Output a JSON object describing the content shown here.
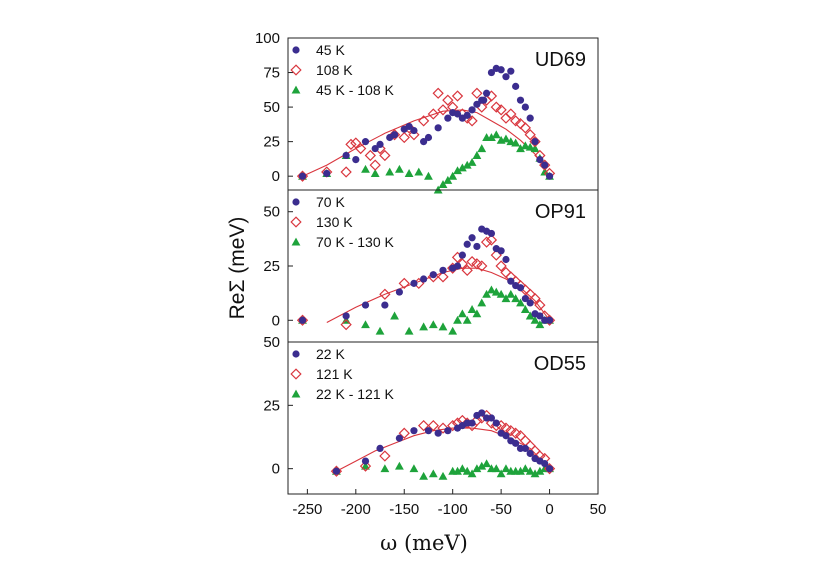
{
  "chart_data": [
    {
      "type": "scatter",
      "panel_label": "UD69",
      "ylim": [
        -10,
        100
      ],
      "yticks": [
        0,
        25,
        50,
        75,
        100
      ],
      "series": [
        {
          "name": "45 K",
          "marker": "circle",
          "color": "#3b2d8f",
          "x": [
            -255,
            -230,
            -210,
            -200,
            -190,
            -180,
            -175,
            -165,
            -160,
            -150,
            -145,
            -140,
            -130,
            -125,
            -115,
            -105,
            -100,
            -95,
            -90,
            -85,
            -80,
            -75,
            -70,
            -68,
            -65,
            -60,
            -55,
            -50,
            -45,
            -40,
            -35,
            -30,
            -25,
            -20,
            -15,
            -10,
            -5,
            0
          ],
          "y": [
            0,
            2,
            15,
            12,
            25,
            20,
            23,
            28,
            30,
            34,
            36,
            33,
            25,
            28,
            35,
            42,
            46,
            45,
            42,
            44,
            48,
            52,
            55,
            55,
            60,
            75,
            78,
            77,
            72,
            76,
            65,
            55,
            50,
            42,
            25,
            12,
            8,
            0
          ]
        },
        {
          "name": "108 K",
          "marker": "diamond",
          "color": "#d9363e",
          "x": [
            -255,
            -230,
            -210,
            -205,
            -200,
            -195,
            -185,
            -180,
            -175,
            -170,
            -160,
            -150,
            -145,
            -140,
            -130,
            -120,
            -115,
            -110,
            -105,
            -100,
            -95,
            -90,
            -85,
            -80,
            -75,
            -70,
            -65,
            -60,
            -55,
            -50,
            -45,
            -40,
            -35,
            -30,
            -25,
            -20,
            -15,
            -10,
            -5,
            0
          ],
          "y": [
            0,
            3,
            3,
            23,
            24,
            20,
            15,
            8,
            20,
            15,
            30,
            28,
            35,
            30,
            40,
            45,
            60,
            48,
            55,
            50,
            58,
            45,
            42,
            40,
            60,
            50,
            55,
            58,
            50,
            48,
            42,
            45,
            40,
            38,
            35,
            30,
            25,
            15,
            8,
            2
          ]
        },
        {
          "name": "45 K - 108 K",
          "marker": "triangle",
          "color": "#1ea33b",
          "x": [
            -255,
            -230,
            -210,
            -190,
            -180,
            -165,
            -155,
            -145,
            -135,
            -125,
            -115,
            -110,
            -105,
            -100,
            -95,
            -90,
            -85,
            -80,
            -75,
            -70,
            -65,
            -60,
            -55,
            -50,
            -45,
            -40,
            -35,
            -30,
            -25,
            -20,
            -15,
            -10,
            -5,
            0
          ],
          "y": [
            0,
            2,
            15,
            5,
            2,
            3,
            5,
            2,
            3,
            0,
            -10,
            -6,
            -3,
            0,
            4,
            6,
            8,
            10,
            15,
            20,
            28,
            28,
            30,
            26,
            27,
            25,
            24,
            20,
            22,
            21,
            20,
            13,
            3,
            0
          ]
        }
      ],
      "fit_curve": {
        "x": [
          -255,
          -230,
          -200,
          -170,
          -140,
          -110,
          -90,
          -75,
          -60,
          -45,
          -30,
          -15,
          0
        ],
        "y": [
          0,
          8,
          20,
          31,
          40,
          47,
          48,
          46,
          40,
          34,
          26,
          16,
          0
        ]
      }
    },
    {
      "type": "scatter",
      "panel_label": "OP91",
      "ylim": [
        -10,
        60
      ],
      "yticks": [
        0,
        25,
        50
      ],
      "series": [
        {
          "name": "70 K",
          "marker": "circle",
          "color": "#3b2d8f",
          "x": [
            -255,
            -210,
            -190,
            -170,
            -155,
            -140,
            -130,
            -120,
            -110,
            -100,
            -95,
            -90,
            -85,
            -80,
            -75,
            -70,
            -65,
            -60,
            -55,
            -50,
            -45,
            -40,
            -35,
            -30,
            -25,
            -20,
            -15,
            -10,
            -5,
            0
          ],
          "y": [
            0,
            2,
            7,
            7,
            13,
            17,
            19,
            21,
            23,
            24,
            25,
            30,
            35,
            38,
            34,
            42,
            41,
            40,
            33,
            32,
            28,
            18,
            16,
            15,
            10,
            8,
            3,
            2,
            0,
            0
          ]
        },
        {
          "name": "130 K",
          "marker": "diamond",
          "color": "#d9363e",
          "x": [
            -255,
            -210,
            -170,
            -150,
            -135,
            -120,
            -110,
            -100,
            -95,
            -90,
            -85,
            -80,
            -75,
            -70,
            -65,
            -60,
            -55,
            -50,
            -45,
            -40,
            -35,
            -30,
            -25,
            -20,
            -15,
            -10,
            -5,
            0
          ],
          "y": [
            0,
            -2,
            12,
            17,
            17,
            20,
            20,
            24,
            29,
            26,
            23,
            27,
            26,
            25,
            36,
            37,
            30,
            25,
            22,
            20,
            18,
            16,
            14,
            12,
            10,
            7,
            2,
            0
          ]
        },
        {
          "name": "70 K - 130 K",
          "marker": "triangle",
          "color": "#1ea33b",
          "x": [
            -255,
            -210,
            -190,
            -175,
            -160,
            -145,
            -130,
            -120,
            -110,
            -100,
            -95,
            -90,
            -85,
            -80,
            -75,
            -70,
            -65,
            -60,
            -55,
            -50,
            -45,
            -40,
            -35,
            -30,
            -25,
            -20,
            -15,
            -10,
            -5,
            0
          ],
          "y": [
            0,
            0,
            -2,
            -5,
            2,
            -5,
            -3,
            -2,
            -3,
            -5,
            0,
            3,
            0,
            5,
            3,
            8,
            12,
            14,
            13,
            12,
            10,
            12,
            10,
            8,
            5,
            2,
            0,
            -2,
            0,
            0
          ]
        }
      ],
      "fit_curve": {
        "x": [
          -230,
          -200,
          -170,
          -140,
          -110,
          -90,
          -75,
          -60,
          -45,
          -30,
          -15,
          0
        ],
        "y": [
          -1,
          6,
          12,
          17,
          22,
          24,
          24,
          22,
          19,
          15,
          9,
          0
        ]
      }
    },
    {
      "type": "scatter",
      "panel_label": "OD55",
      "ylim": [
        -10,
        50
      ],
      "yticks": [
        0,
        25,
        50
      ],
      "series": [
        {
          "name": "22 K",
          "marker": "circle",
          "color": "#3b2d8f",
          "x": [
            -220,
            -190,
            -175,
            -155,
            -140,
            -125,
            -115,
            -105,
            -95,
            -90,
            -85,
            -80,
            -75,
            -70,
            -65,
            -60,
            -55,
            -50,
            -45,
            -40,
            -35,
            -30,
            -25,
            -20,
            -15,
            -10,
            -5,
            0
          ],
          "y": [
            -1,
            3,
            8,
            12,
            15,
            15,
            14,
            15,
            16,
            17,
            18,
            18,
            21,
            22,
            20,
            20,
            18,
            14,
            13,
            11,
            10,
            8,
            8,
            6,
            4,
            3,
            2,
            0
          ]
        },
        {
          "name": "121 K",
          "marker": "diamond",
          "color": "#d9363e",
          "x": [
            -220,
            -190,
            -170,
            -150,
            -130,
            -120,
            -110,
            -100,
            -95,
            -90,
            -85,
            -80,
            -75,
            -70,
            -65,
            -60,
            -55,
            -50,
            -45,
            -40,
            -35,
            -30,
            -25,
            -20,
            -15,
            -10,
            -5,
            0
          ],
          "y": [
            -1,
            1,
            5,
            14,
            17,
            17,
            16,
            17,
            18,
            19,
            18,
            17,
            19,
            20,
            21,
            18,
            17,
            17,
            16,
            15,
            14,
            13,
            11,
            9,
            7,
            5,
            4,
            0
          ]
        },
        {
          "name": "22 K - 121 K",
          "marker": "triangle",
          "color": "#1ea33b",
          "x": [
            -220,
            -190,
            -170,
            -155,
            -140,
            -130,
            -120,
            -110,
            -100,
            -95,
            -90,
            -85,
            -80,
            -75,
            -70,
            -65,
            -60,
            -55,
            -50,
            -45,
            -40,
            -35,
            -30,
            -25,
            -20,
            -15,
            -10,
            -5,
            0
          ],
          "y": [
            -1,
            1,
            0,
            1,
            0,
            -3,
            -2,
            -3,
            -1,
            -1,
            0,
            -1,
            -2,
            0,
            1,
            2,
            0,
            0,
            -2,
            0,
            -1,
            -1,
            -1,
            0,
            -1,
            -2,
            -1,
            0,
            0
          ]
        }
      ],
      "fit_curve": {
        "x": [
          -220,
          -200,
          -180,
          -160,
          -140,
          -120,
          -100,
          -80,
          -60,
          -40,
          -20,
          0
        ],
        "y": [
          -1,
          3,
          7,
          10,
          13,
          15,
          16,
          16,
          15,
          12,
          8,
          0
        ]
      }
    }
  ],
  "axes": {
    "xlabel": "ω (meV)",
    "ylabel": "ReΣ (meV)",
    "xticks": [
      -250,
      -200,
      -150,
      -100,
      -50,
      0,
      50
    ],
    "xlim": [
      -270,
      50
    ]
  }
}
